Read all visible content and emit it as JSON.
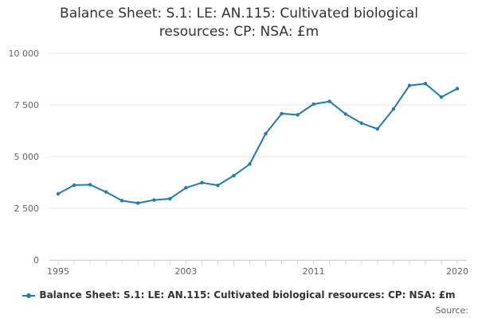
{
  "chart_data": {
    "type": "line",
    "title_lines": [
      "Balance Sheet: S.1: LE: AN.115: Cultivated biological",
      "resources: CP: NSA: £m"
    ],
    "xlabel": "",
    "ylabel": "",
    "x": [
      1995,
      1996,
      1997,
      1998,
      1999,
      2000,
      2001,
      2002,
      2003,
      2004,
      2005,
      2006,
      2007,
      2008,
      2009,
      2010,
      2011,
      2012,
      2013,
      2014,
      2015,
      2016,
      2017,
      2018,
      2019,
      2020
    ],
    "xticks": [
      1995,
      2003,
      2011,
      2020
    ],
    "xtick_labels": [
      "1995",
      "2003",
      "2011",
      "2020"
    ],
    "xlim": [
      1995,
      2020
    ],
    "series": [
      {
        "name": "Balance Sheet: S.1: LE: AN.115: Cultivated biological resources: CP: NSA: £m",
        "color": "#1f7bb6",
        "values": [
          3200,
          3620,
          3640,
          3290,
          2870,
          2750,
          2900,
          2960,
          3490,
          3740,
          3610,
          4080,
          4640,
          6110,
          7080,
          7020,
          7540,
          7670,
          7060,
          6620,
          6340,
          7300,
          8440,
          8530,
          7880,
          8290
        ]
      }
    ],
    "yticks": [
      0,
      2500,
      5000,
      7500,
      10000
    ],
    "ytick_labels": [
      "0",
      "2 500",
      "5 000",
      "7 500",
      "10 000"
    ],
    "ylim": [
      0,
      10000
    ],
    "grid": true,
    "legend_position": "bottom"
  },
  "legend": {
    "label": "Balance Sheet: S.1: LE: AN.115: Cultivated biological resources: CP: NSA: £m"
  },
  "source_label": "Source:"
}
